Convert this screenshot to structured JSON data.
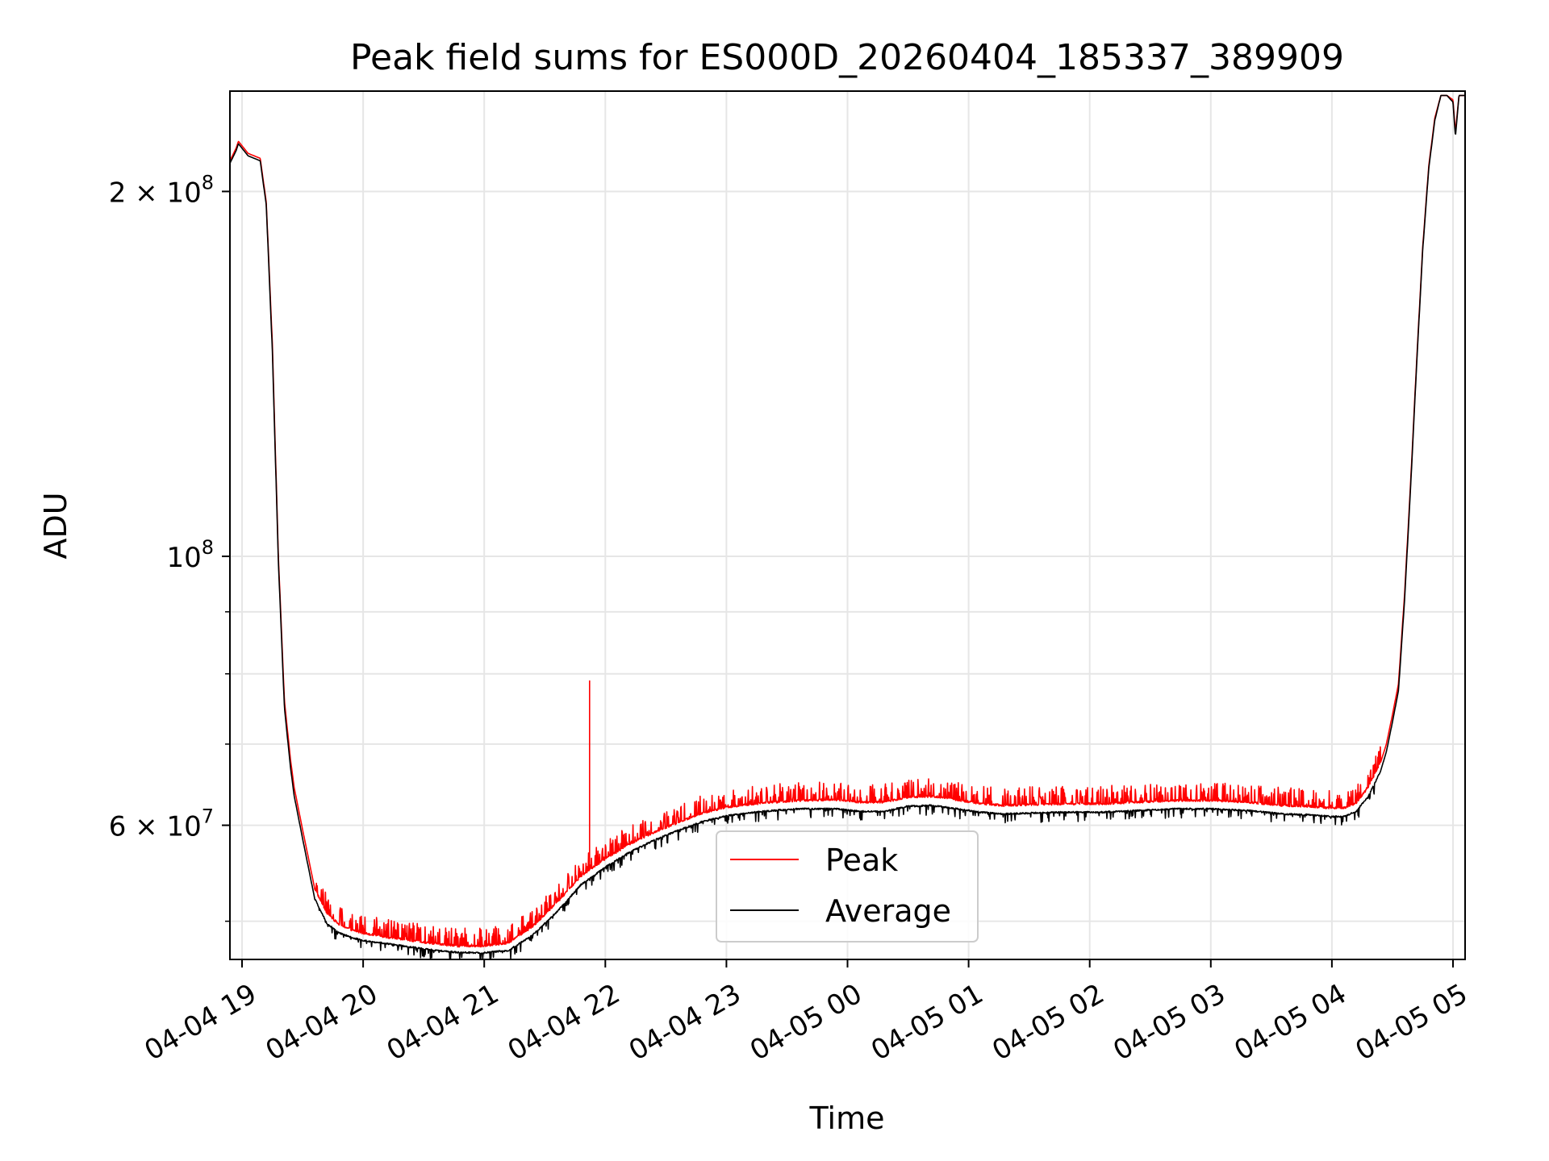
{
  "chart_data": {
    "type": "line",
    "title": "Peak field sums for ES000D_20260404_185337_389909",
    "xlabel": "Time",
    "ylabel": "ADU",
    "yscale": "log",
    "ylim": [
      46500000,
      242000000
    ],
    "xlim_hours": [
      -0.1,
      10.1
    ],
    "x_unit": "hours after 04-04 19:00",
    "grid": true,
    "legend_position": "lower center",
    "x_ticks": [
      {
        "hour": 0,
        "label": "04-04 19"
      },
      {
        "hour": 1,
        "label": "04-04 20"
      },
      {
        "hour": 2,
        "label": "04-04 21"
      },
      {
        "hour": 3,
        "label": "04-04 22"
      },
      {
        "hour": 4,
        "label": "04-04 23"
      },
      {
        "hour": 5,
        "label": "04-05 00"
      },
      {
        "hour": 6,
        "label": "04-05 01"
      },
      {
        "hour": 7,
        "label": "04-05 02"
      },
      {
        "hour": 8,
        "label": "04-05 03"
      },
      {
        "hour": 9,
        "label": "04-05 04"
      },
      {
        "hour": 10,
        "label": "04-05 05"
      }
    ],
    "y_major_ticks": [
      {
        "value": 200000000,
        "base": "2 × 10",
        "exp": "8"
      },
      {
        "value": 100000000,
        "base": "10",
        "exp": "8"
      },
      {
        "value": 60000000,
        "base": "6 × 10",
        "exp": "7"
      }
    ],
    "y_minor_ticks": [
      50000000,
      70000000,
      80000000,
      90000000
    ],
    "series": [
      {
        "name": "Peak",
        "color": "#ff0000",
        "x": [
          -0.1,
          -0.05,
          -0.03,
          0.05,
          0.15,
          0.2,
          0.25,
          0.3,
          0.35,
          0.4,
          0.43,
          0.5,
          0.6,
          0.7,
          0.8,
          0.9,
          1.0,
          1.2,
          1.4,
          1.6,
          1.8,
          2.0,
          2.2,
          2.4,
          2.6,
          2.8,
          3.0,
          3.2,
          3.4,
          3.6,
          3.8,
          4.0,
          4.3,
          4.6,
          4.9,
          5.1,
          5.3,
          5.5,
          5.7,
          5.9,
          6.1,
          6.3,
          6.5,
          6.8,
          7.1,
          7.4,
          7.7,
          8.0,
          8.3,
          8.6,
          8.8,
          9.0,
          9.1,
          9.2,
          9.3,
          9.4,
          9.45,
          9.5,
          9.55,
          9.6,
          9.65,
          9.7,
          9.75,
          9.8,
          9.85,
          9.9,
          9.95,
          10.0,
          10.02,
          10.05,
          10.1
        ],
        "values": [
          212000000,
          217000000,
          220000000,
          215000000,
          213000000,
          196000000,
          150000000,
          100000000,
          76000000,
          68000000,
          64500000,
          59500000,
          53200000,
          50800000,
          49700000,
          49200000,
          48900000,
          48500000,
          48200000,
          47900000,
          47700000,
          47700000,
          48000000,
          49500000,
          51800000,
          54500000,
          56300000,
          57900000,
          59200000,
          60300000,
          61400000,
          62100000,
          62600000,
          62900000,
          63000000,
          62700000,
          62700000,
          63300000,
          63400000,
          63000000,
          62500000,
          62300000,
          62400000,
          62500000,
          62500000,
          62700000,
          62900000,
          62900000,
          62700000,
          62300000,
          62200000,
          62000000,
          62000000,
          62600000,
          64500000,
          67500000,
          70000000,
          74000000,
          78500000,
          93000000,
          115000000,
          145000000,
          180000000,
          210000000,
          230000000,
          240000000,
          240000000,
          238000000,
          224000000,
          240000000,
          240000000
        ]
      },
      {
        "name": "Average",
        "color": "#000000",
        "x": [
          -0.1,
          -0.05,
          -0.03,
          0.05,
          0.15,
          0.2,
          0.25,
          0.3,
          0.35,
          0.4,
          0.43,
          0.5,
          0.6,
          0.7,
          0.8,
          0.9,
          1.0,
          1.2,
          1.4,
          1.6,
          1.8,
          2.0,
          2.2,
          2.4,
          2.6,
          2.8,
          3.0,
          3.2,
          3.4,
          3.6,
          3.8,
          4.0,
          4.3,
          4.6,
          4.9,
          5.1,
          5.3,
          5.5,
          5.7,
          5.9,
          6.1,
          6.3,
          6.5,
          6.8,
          7.1,
          7.4,
          7.7,
          8.0,
          8.3,
          8.6,
          8.8,
          9.0,
          9.1,
          9.2,
          9.3,
          9.4,
          9.45,
          9.5,
          9.55,
          9.6,
          9.65,
          9.7,
          9.75,
          9.8,
          9.85,
          9.9,
          9.95,
          10.0,
          10.02,
          10.05,
          10.1
        ],
        "values": [
          211000000,
          216000000,
          219000000,
          214000000,
          212000000,
          195000000,
          148000000,
          99000000,
          75000000,
          67000000,
          63500000,
          58500000,
          52200000,
          49800000,
          48900000,
          48500000,
          48200000,
          47900000,
          47600000,
          47300000,
          47100000,
          47100000,
          47300000,
          48700000,
          50900000,
          53600000,
          55400000,
          57000000,
          58300000,
          59400000,
          60400000,
          61100000,
          61600000,
          61900000,
          61900000,
          61600000,
          61600000,
          62200000,
          62300000,
          61900000,
          61500000,
          61300000,
          61400000,
          61500000,
          61500000,
          61700000,
          61900000,
          61900000,
          61700000,
          61300000,
          61200000,
          61000000,
          61000000,
          61600000,
          63400000,
          66400000,
          69000000,
          73000000,
          77500000,
          92000000,
          114000000,
          144000000,
          179000000,
          209000000,
          229000000,
          240000000,
          240000000,
          237000000,
          222000000,
          240000000,
          240000000
        ]
      }
    ],
    "annotations": [
      {
        "series": "Peak",
        "hour": 2.87,
        "value": 79000000,
        "note": "spike"
      }
    ]
  }
}
